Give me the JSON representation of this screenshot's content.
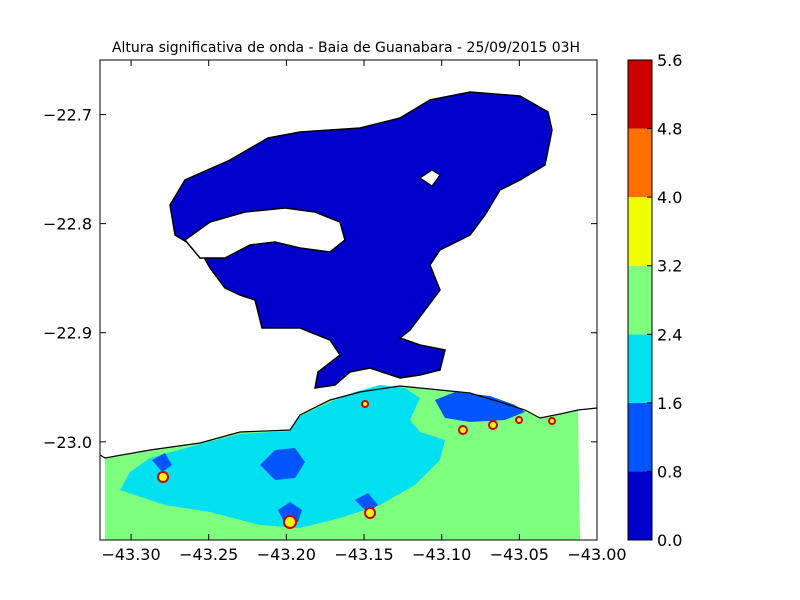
{
  "chart_data": {
    "type": "heatmap",
    "title": "Altura significativa de onda - Baia de Guanabara - 25/09/2015 03H",
    "xlabel": "",
    "ylabel": "",
    "xlim": [
      -43.32,
      -43.0
    ],
    "ylim": [
      -23.09,
      -22.65
    ],
    "x_ticks": [
      -43.3,
      -43.25,
      -43.2,
      -43.15,
      -43.1,
      -43.05,
      -43.0
    ],
    "x_tick_labels": [
      "−43.30",
      "−43.25",
      "−43.20",
      "−43.15",
      "−43.10",
      "−43.05",
      "−43.00"
    ],
    "y_ticks": [
      -22.7,
      -22.8,
      -22.9,
      -23.0
    ],
    "y_tick_labels": [
      "−22.7",
      "−22.8",
      "−22.9",
      "−23.0"
    ],
    "colorbar": {
      "levels": [
        0.0,
        0.8,
        1.6,
        2.4,
        3.2,
        4.0,
        4.8,
        5.6
      ],
      "labels": [
        "0.0",
        "0.8",
        "1.6",
        "2.4",
        "3.2",
        "4.0",
        "4.8",
        "5.6"
      ],
      "colors": [
        "#0000cd",
        "#0055ff",
        "#00e0f0",
        "#7fff7f",
        "#f0ff00",
        "#ff7000",
        "#cd0000"
      ]
    },
    "grid": false
  }
}
